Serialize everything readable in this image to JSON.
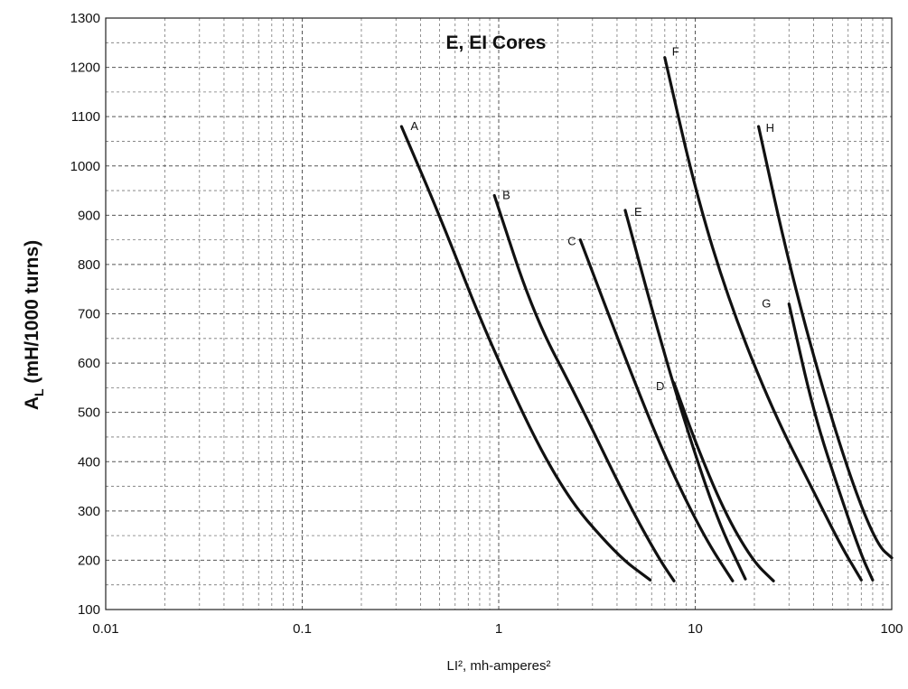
{
  "chart_data": {
    "type": "line",
    "title": "E, EI Cores",
    "xlabel": "LI², mh-amperes²",
    "ylabel_main": "A",
    "ylabel_sub": "L",
    "ylabel_rest": " (mH/1000 turns)",
    "xscale": "log",
    "xlim": [
      0.01,
      100
    ],
    "ylim": [
      100,
      1300
    ],
    "grid": true,
    "x_ticks": [
      "0.01",
      "0.1",
      "1",
      "10",
      "100"
    ],
    "y_ticks": [
      "100",
      "200",
      "300",
      "400",
      "500",
      "600",
      "700",
      "800",
      "900",
      "1000",
      "1100",
      "1200",
      "1300"
    ],
    "series": [
      {
        "name": "A",
        "x": [
          0.32,
          0.5,
          0.9,
          2.0,
          4.0,
          5.9
        ],
        "y": [
          1080,
          900,
          640,
          350,
          210,
          160
        ]
      },
      {
        "name": "B",
        "x": [
          0.95,
          1.5,
          2.5,
          4.5,
          6.5,
          7.8
        ],
        "y": [
          940,
          700,
          530,
          320,
          205,
          158
        ]
      },
      {
        "name": "C",
        "x": [
          2.6,
          4.5,
          7.0,
          11.0,
          15.5
        ],
        "y": [
          850,
          600,
          410,
          250,
          158
        ]
      },
      {
        "name": "E",
        "x": [
          4.4,
          6.5,
          9.0,
          13.0,
          18.0
        ],
        "y": [
          910,
          660,
          470,
          280,
          162
        ]
      },
      {
        "name": "D",
        "x": [
          7.8,
          10.0,
          14.0,
          19.5,
          25.0
        ],
        "y": [
          560,
          440,
          300,
          200,
          158
        ]
      },
      {
        "name": "F",
        "x": [
          7.0,
          10.0,
          15.0,
          25.0,
          40.0,
          55.0,
          70.0
        ],
        "y": [
          1220,
          950,
          720,
          500,
          340,
          230,
          160
        ]
      },
      {
        "name": "G",
        "x": [
          30.0,
          40.0,
          55.0,
          70.0,
          80.0
        ],
        "y": [
          720,
          500,
          330,
          210,
          160
        ]
      },
      {
        "name": "H",
        "x": [
          21.0,
          30.0,
          45.0,
          65.0,
          85.0,
          100.0
        ],
        "y": [
          1080,
          800,
          540,
          340,
          230,
          205
        ]
      }
    ]
  }
}
